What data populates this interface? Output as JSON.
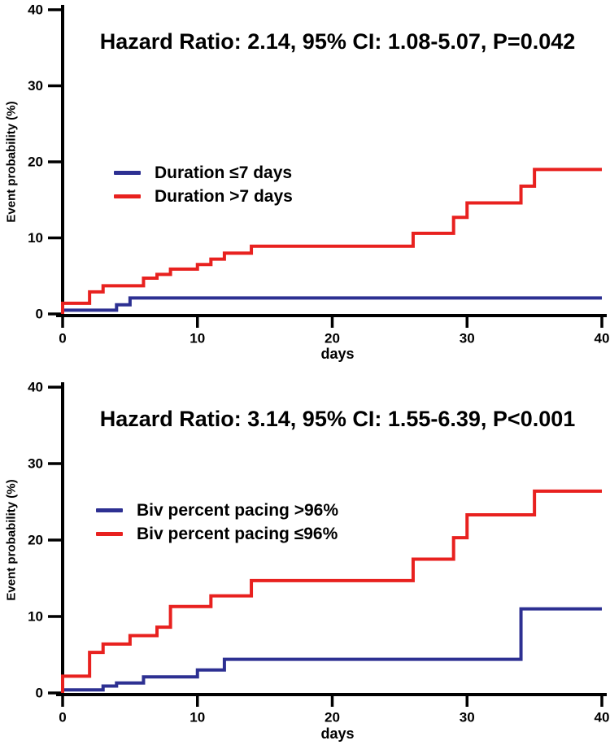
{
  "chart_data": [
    {
      "type": "line",
      "line_style": "step-after",
      "title": "Hazard Ratio: 2.14, 95% CI: 1.08-5.07, P=0.042",
      "xlabel": "days",
      "ylabel": "Event probability (%)",
      "xlim": [
        0,
        40
      ],
      "ylim": [
        0,
        40
      ],
      "xticks": [
        0,
        10,
        20,
        30,
        40
      ],
      "yticks": [
        0,
        10,
        20,
        30,
        40
      ],
      "grid": false,
      "legend_position": "inside-upper-left",
      "axis_color": "#000000",
      "series": [
        {
          "name": "Duration ≤7 days",
          "color": "#2d3092",
          "points": [
            [
              0,
              0.5
            ],
            [
              4,
              1.2
            ],
            [
              5,
              2.1
            ],
            [
              40,
              2.1
            ]
          ]
        },
        {
          "name": "Duration >7 days",
          "color": "#e8211f",
          "points": [
            [
              0,
              1.4
            ],
            [
              2,
              2.9
            ],
            [
              3,
              3.7
            ],
            [
              6,
              4.7
            ],
            [
              7,
              5.2
            ],
            [
              8,
              5.9
            ],
            [
              10,
              6.5
            ],
            [
              11,
              7.2
            ],
            [
              12,
              8.0
            ],
            [
              14,
              8.9
            ],
            [
              26,
              10.6
            ],
            [
              29,
              12.7
            ],
            [
              30,
              14.6
            ],
            [
              34,
              16.8
            ],
            [
              35,
              19.0
            ],
            [
              40,
              19.0
            ]
          ]
        }
      ]
    },
    {
      "type": "line",
      "line_style": "step-after",
      "title": "Hazard Ratio: 3.14, 95% CI: 1.55-6.39, P<0.001",
      "xlabel": "days",
      "ylabel": "Event probability (%)",
      "xlim": [
        0,
        40
      ],
      "ylim": [
        0,
        40
      ],
      "xticks": [
        0,
        10,
        20,
        30,
        40
      ],
      "yticks": [
        0,
        10,
        20,
        30,
        40
      ],
      "grid": false,
      "legend_position": "inside-upper-left",
      "axis_color": "#000000",
      "series": [
        {
          "name": "Biv percent pacing >96%",
          "color": "#2d3092",
          "points": [
            [
              0,
              0.4
            ],
            [
              3,
              0.9
            ],
            [
              4,
              1.3
            ],
            [
              6,
              2.1
            ],
            [
              10,
              3.0
            ],
            [
              12,
              4.4
            ],
            [
              34,
              11.0
            ],
            [
              40,
              11.0
            ]
          ]
        },
        {
          "name": "Biv percent pacing ≤96%",
          "color": "#e8211f",
          "points": [
            [
              0,
              2.2
            ],
            [
              2,
              5.3
            ],
            [
              3,
              6.4
            ],
            [
              5,
              7.5
            ],
            [
              7,
              8.6
            ],
            [
              8,
              11.3
            ],
            [
              11,
              12.7
            ],
            [
              14,
              14.7
            ],
            [
              26,
              17.5
            ],
            [
              29,
              20.3
            ],
            [
              30,
              23.3
            ],
            [
              35,
              26.4
            ],
            [
              40,
              26.4
            ]
          ]
        }
      ]
    }
  ]
}
